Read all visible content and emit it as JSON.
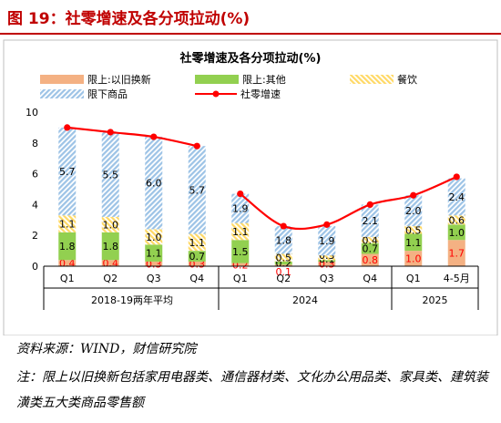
{
  "figure": {
    "label": "图 19：",
    "title": "社零增速及各分项拉动(%)"
  },
  "source": "资料来源：WIND，财信研究院",
  "note": "注：限上以旧换新包括家用电器类、通信器材类、文化办公用品类、家具类、建筑装潢类五大类商品零售额",
  "colors": {
    "trade_in": "#f4b183",
    "trade_in_label": "#ff0000",
    "other": "#92d050",
    "dining": "#ffd966",
    "below_quota": "#9dc3e6",
    "total_line": "#ff0000",
    "title_red": "#c00000"
  },
  "chart_data": {
    "type": "bar",
    "title": "社零增速及各分项拉动(%)",
    "stacked": true,
    "categories": [
      "Q1",
      "Q2",
      "Q3",
      "Q4",
      "Q1",
      "Q2",
      "Q3",
      "Q4",
      "Q1",
      "4-5月"
    ],
    "groups": [
      {
        "label": "2018-19两年平均",
        "categories": [
          0,
          1,
          2,
          3
        ]
      },
      {
        "label": "2024",
        "categories": [
          4,
          5,
          6,
          7
        ]
      },
      {
        "label": "2025",
        "categories": [
          8,
          9
        ]
      }
    ],
    "ylim": [
      0,
      10
    ],
    "yticks": [
      0,
      2,
      4,
      6,
      8,
      10
    ],
    "legend_position": "top",
    "series": [
      {
        "name": "限上:以旧换新",
        "key": "trade_in",
        "values": [
          0.4,
          0.4,
          0.3,
          0.3,
          0.2,
          0.1,
          0.3,
          0.8,
          1.0,
          1.7
        ]
      },
      {
        "name": "限上:其他",
        "key": "other",
        "values": [
          1.8,
          1.8,
          1.1,
          0.7,
          1.5,
          0.2,
          0.1,
          0.7,
          1.1,
          1.0
        ]
      },
      {
        "name": "餐饮",
        "key": "dining",
        "values": [
          1.1,
          1.0,
          1.0,
          1.1,
          1.1,
          0.5,
          0.3,
          0.4,
          0.5,
          0.6
        ]
      },
      {
        "name": "限下商品",
        "key": "below_quota",
        "values": [
          5.7,
          5.5,
          6.0,
          5.7,
          1.9,
          1.8,
          1.9,
          2.1,
          2.0,
          2.4
        ]
      }
    ],
    "value_labels": {
      "trade_in": [
        "0.4",
        "0.4",
        "0.3",
        "0.3",
        "0.2",
        "0.1",
        "0.3",
        "0.8",
        "1.0",
        "1.7"
      ],
      "other": [
        "1.8",
        "1.8",
        "1.1",
        "0.7",
        "1.5",
        "0.2",
        "0.1",
        "0.7",
        "1.1",
        "1.0"
      ],
      "dining": [
        "1.1",
        "1.0",
        "1.0",
        "1.1",
        "1.1",
        "0.5",
        "0.3",
        "0.4",
        "0.5",
        "0.6"
      ],
      "below_quota": [
        "5.7",
        "5.5",
        "6.0",
        "5.7",
        "1.9",
        "1.8",
        "1.9",
        "2.1",
        "2.0",
        "2.4"
      ]
    },
    "line": {
      "name": "社零增速",
      "values": [
        9.0,
        8.7,
        8.4,
        7.8,
        4.7,
        2.6,
        2.7,
        4.0,
        4.6,
        5.8
      ]
    }
  }
}
